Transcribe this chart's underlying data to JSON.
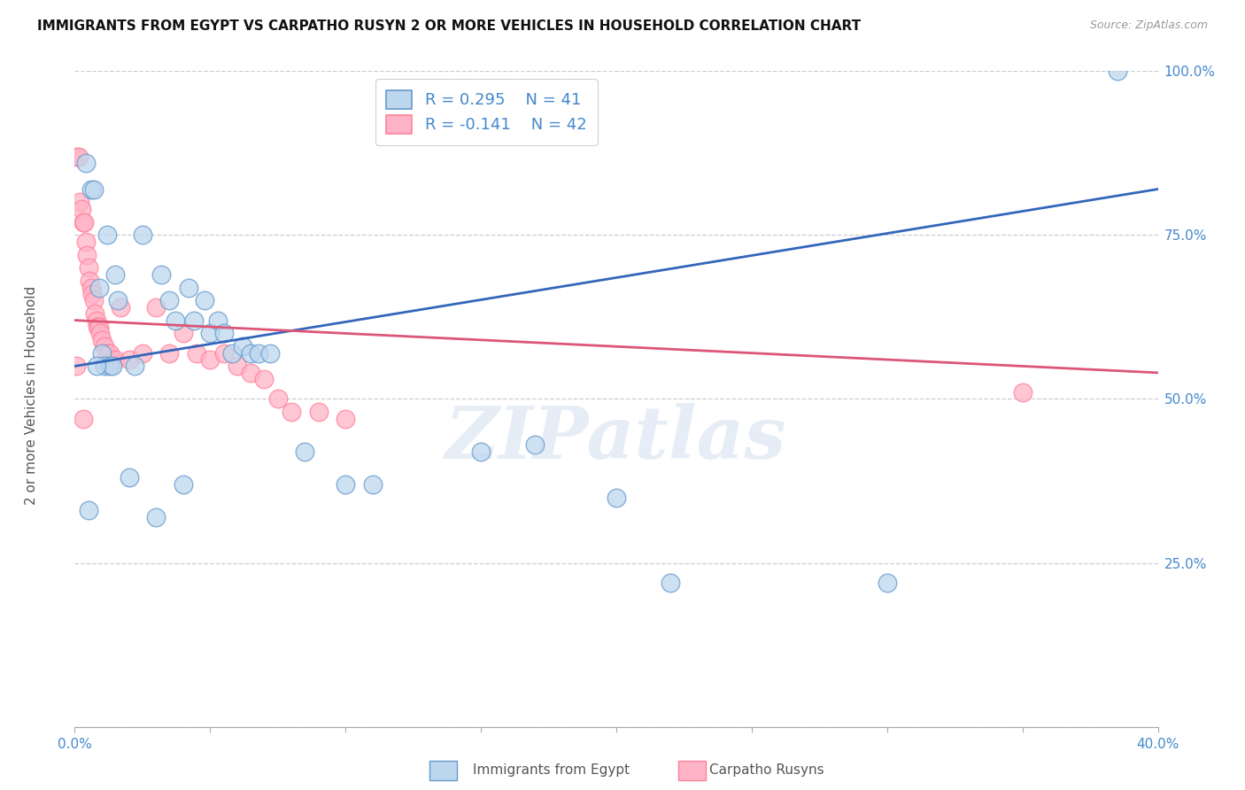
{
  "title": "IMMIGRANTS FROM EGYPT VS CARPATHO RUSYN 2 OR MORE VEHICLES IN HOUSEHOLD CORRELATION CHART",
  "source": "Source: ZipAtlas.com",
  "ylabel": "2 or more Vehicles in Household",
  "legend_label_blue": "Immigrants from Egypt",
  "legend_label_pink": "Carpatho Rusyns",
  "R_blue": 0.295,
  "N_blue": 41,
  "R_pink": -0.141,
  "N_pink": 42,
  "xlim": [
    0.0,
    40.0
  ],
  "ylim": [
    0.0,
    100.0
  ],
  "blue_scatter_face": "#BDD7EE",
  "blue_scatter_edge": "#6699CC",
  "pink_scatter_face": "#FFB3C6",
  "pink_scatter_edge": "#FF8099",
  "line_blue": "#3366BB",
  "line_pink": "#DD5577",
  "tick_color": "#4488CC",
  "ylabel_color": "#555555",
  "background_color": "#FFFFFF",
  "grid_color": "#CCCCCC",
  "watermark": "ZIPatlas",
  "blue_points": [
    [
      0.4,
      86.0
    ],
    [
      0.6,
      82.0
    ],
    [
      0.7,
      82.0
    ],
    [
      1.2,
      75.0
    ],
    [
      0.5,
      33.0
    ],
    [
      0.9,
      67.0
    ],
    [
      1.5,
      69.0
    ],
    [
      1.6,
      65.0
    ],
    [
      2.5,
      75.0
    ],
    [
      3.2,
      69.0
    ],
    [
      3.5,
      65.0
    ],
    [
      3.7,
      62.0
    ],
    [
      4.2,
      67.0
    ],
    [
      4.4,
      62.0
    ],
    [
      4.8,
      65.0
    ],
    [
      5.0,
      60.0
    ],
    [
      5.3,
      62.0
    ],
    [
      5.5,
      60.0
    ],
    [
      5.8,
      57.0
    ],
    [
      6.2,
      58.0
    ],
    [
      6.5,
      57.0
    ],
    [
      6.8,
      57.0
    ],
    [
      7.2,
      57.0
    ],
    [
      1.0,
      57.0
    ],
    [
      1.1,
      55.0
    ],
    [
      1.3,
      55.0
    ],
    [
      1.4,
      55.0
    ],
    [
      2.0,
      38.0
    ],
    [
      3.0,
      32.0
    ],
    [
      4.0,
      37.0
    ],
    [
      8.5,
      42.0
    ],
    [
      10.0,
      37.0
    ],
    [
      11.0,
      37.0
    ],
    [
      15.0,
      42.0
    ],
    [
      20.0,
      35.0
    ],
    [
      22.0,
      22.0
    ],
    [
      30.0,
      22.0
    ],
    [
      38.5,
      100.0
    ],
    [
      17.0,
      43.0
    ],
    [
      0.8,
      55.0
    ],
    [
      2.2,
      55.0
    ]
  ],
  "pink_points": [
    [
      0.1,
      87.0
    ],
    [
      0.15,
      87.0
    ],
    [
      0.2,
      80.0
    ],
    [
      0.25,
      79.0
    ],
    [
      0.3,
      77.0
    ],
    [
      0.35,
      77.0
    ],
    [
      0.4,
      74.0
    ],
    [
      0.45,
      72.0
    ],
    [
      0.5,
      70.0
    ],
    [
      0.55,
      68.0
    ],
    [
      0.6,
      67.0
    ],
    [
      0.65,
      66.0
    ],
    [
      0.7,
      65.0
    ],
    [
      0.75,
      63.0
    ],
    [
      0.8,
      62.0
    ],
    [
      0.85,
      61.0
    ],
    [
      0.9,
      61.0
    ],
    [
      0.95,
      60.0
    ],
    [
      1.0,
      59.0
    ],
    [
      1.1,
      58.0
    ],
    [
      1.2,
      57.0
    ],
    [
      1.3,
      57.0
    ],
    [
      1.5,
      56.0
    ],
    [
      1.7,
      64.0
    ],
    [
      2.0,
      56.0
    ],
    [
      2.5,
      57.0
    ],
    [
      3.0,
      64.0
    ],
    [
      3.5,
      57.0
    ],
    [
      4.0,
      60.0
    ],
    [
      4.5,
      57.0
    ],
    [
      5.0,
      56.0
    ],
    [
      5.5,
      57.0
    ],
    [
      6.0,
      55.0
    ],
    [
      6.5,
      54.0
    ],
    [
      7.0,
      53.0
    ],
    [
      7.5,
      50.0
    ],
    [
      8.0,
      48.0
    ],
    [
      9.0,
      48.0
    ],
    [
      10.0,
      47.0
    ],
    [
      35.0,
      51.0
    ],
    [
      0.05,
      55.0
    ],
    [
      0.3,
      47.0
    ]
  ]
}
